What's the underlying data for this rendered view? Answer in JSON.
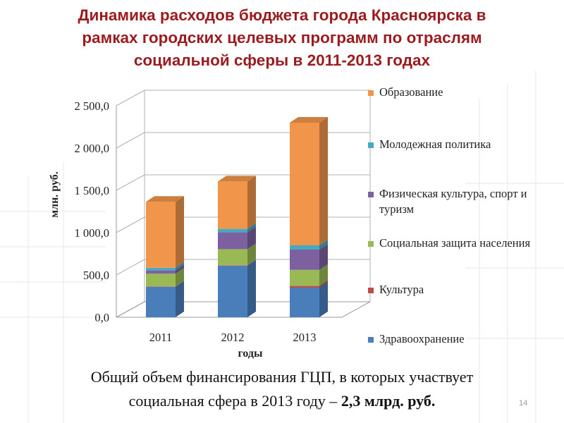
{
  "title_lines": [
    "Динамика расходов бюджета города Красноярска в",
    "рамках городских целевых программ по отраслям",
    "социальной сферы в 2011-2013 годах"
  ],
  "chart_data": {
    "type": "bar",
    "stacked": true,
    "three_d": true,
    "categories": [
      "2011",
      "2012",
      "2013"
    ],
    "ylabel": "млн. руб.",
    "xlabel": "годы",
    "ylim": [
      0,
      2500
    ],
    "y_ticks": [
      "0,0",
      "500,0",
      "1 000,0",
      "1 500,0",
      "2 000,0",
      "2 500,0"
    ],
    "grid": true,
    "legend_position": "right",
    "series": [
      {
        "name": "Здравоохранение",
        "color": "#4a7ebb",
        "values": [
          360,
          610,
          350
        ]
      },
      {
        "name": "Культура",
        "color": "#be4b48",
        "values": [
          5,
          5,
          20
        ]
      },
      {
        "name": "Социальная защита населения",
        "color": "#98b954",
        "values": [
          150,
          190,
          190
        ]
      },
      {
        "name": "Физическая культура, спорт и туризм",
        "color": "#7d60a0",
        "values": [
          40,
          200,
          240
        ]
      },
      {
        "name": "Молодежная политика",
        "color": "#46aac5",
        "values": [
          30,
          40,
          50
        ]
      },
      {
        "name": "Образование",
        "color": "#f0954a",
        "values": [
          780,
          560,
          1450
        ]
      }
    ]
  },
  "footer": {
    "line1": "Общий объем финансирования ГЦП, в которых участвует",
    "line2_prefix": "социальная сфера в 2013 году – ",
    "line2_bold": "2,3 млрд. руб."
  },
  "page_number": "14"
}
